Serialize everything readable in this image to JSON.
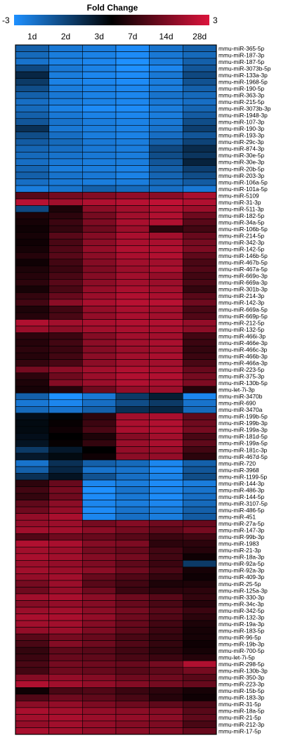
{
  "chart_data": {
    "type": "heatmap",
    "title": "Fold Change",
    "legend": {
      "min_label": "-3",
      "max_label": "3",
      "min": -3,
      "max": 3,
      "low_color": "#1e90ff",
      "mid_color": "#000000",
      "high_color": "#dc143c",
      "placement": "top"
    },
    "columns": [
      "1d",
      "2d",
      "3d",
      "7d",
      "14d",
      "28d"
    ],
    "rows": [
      "mmu-miR-365-5p",
      "mmu-miR-187-3p",
      "mmu-miR-187-5p",
      "mmu-miR-3073b-5p",
      "mmu-miR-133a-3p",
      "mmu-miR-1968-5p",
      "mmu-miR-190-5p",
      "mmu-miR-363-3p",
      "mmu-miR-215-5p",
      "mmu-miR-3073b-3p",
      "mmu-miR-1948-3p",
      "mmu-miR-107-3p",
      "mmu-miR-190-3p",
      "mmu-miR-193-3p",
      "mmu-miR-29c-3p",
      "mmu-miR-874-3p",
      "mmu-miR-30e-5p",
      "mmu-miR-30e-3p",
      "mmu-miR-20b-5p",
      "mmu-miR-203-3p",
      "mmu-miR-106a-5p",
      "mmu-miR-101a-5p",
      "mmu-miR-5109",
      "mmu-miR-31-3p",
      "mmu-miR-511-3p",
      "mmu-miR-182-5p",
      "mmu-miR-34a-5p",
      "mmu-miR-106b-5p",
      "mmu-miR-214-5p",
      "mmu-miR-342-3p",
      "mmu-miR-142-5p",
      "mmu-miR-146b-5p",
      "mmu-miR-467b-5p",
      "mmu-miR-467a-5p",
      "mmu-miR-669o-3p",
      "mmu-miR-669a-3p",
      "mmu-miR-301b-3p",
      "mmu-miR-214-3p",
      "mmu-miR-142-3p",
      "mmu-miR-669a-5p",
      "mmu-miR-669p-5p",
      "mmu-miR-212-5p",
      "mmu-miR-132-5p",
      "mmu-miR-466i-3p",
      "mmu-miR-466e-3p",
      "mmu-miR-466c-3p",
      "mmu-miR-466b-3p",
      "mmu-miR-466a-3p",
      "mmu-miR-223-5p",
      "mmu-miR-375-3p",
      "mmu-miR-130b-5p",
      "mmu-let-7i-3p",
      "mmu-miR-3470b",
      "mmu-miR-690",
      "mmu-miR-3470a",
      "mmu-miR-199b-5p",
      "mmu-miR-199b-3p",
      "mmu-miR-199a-3p",
      "mmu-miR-181d-5p",
      "mmu-miR-199a-5p",
      "mmu-miR-181c-3p",
      "mmu-miR-467d-5p",
      "mmu-miR-720",
      "mmu-miR-3968",
      "mmu-miR-1199-5p",
      "mmu-miR-144-3p",
      "mmu-miR-486-3p",
      "mmu-miR-144-5p",
      "mmu-miR-3107-5p",
      "mmu-miR-486-5p",
      "mmu-miR-451",
      "mmu-miR-27a-5p",
      "mmu-miR-147-3p",
      "mmu-miR-99b-3p",
      "mmu-miR-1983",
      "mmu-miR-21-3p",
      "mmu-miR-18a-3p",
      "mmu-miR-92a-5p",
      "mmu-miR-92a-3p",
      "mmu-miR-409-3p",
      "mmu-miR-25-5p",
      "mmu-miR-125a-3p",
      "mmu-miR-330-3p",
      "mmu-miR-34c-3p",
      "mmu-miR-342-5p",
      "mmu-miR-132-3p",
      "mmu-miR-19a-3p",
      "mmu-miR-183-5p",
      "mmu-miR-96-5p",
      "mmu-miR-19b-3p",
      "mmu-miR-700-5p",
      "mmu-let-7i-5p",
      "mmu-miR-298-5p",
      "mmu-miR-130b-3p",
      "mmu-miR-350-3p",
      "mmu-miR-223-3p",
      "mmu-miR-15b-5p",
      "mmu-miR-183-3p",
      "mmu-miR-31-5p",
      "mmu-miR-18a-5p",
      "mmu-miR-21-5p",
      "mmu-miR-212-3p",
      "mmu-miR-17-5p"
    ],
    "values": [
      [
        -2.0,
        -2.5,
        -2.6,
        -2.9,
        -2.4,
        -2.0
      ],
      [
        -2.2,
        -2.6,
        -2.7,
        -2.9,
        -2.5,
        -2.2
      ],
      [
        -2.4,
        -2.7,
        -2.8,
        -3.0,
        -2.6,
        -2.0
      ],
      [
        -1.5,
        -2.5,
        -2.7,
        -3.0,
        -2.8,
        -1.8
      ],
      [
        -0.8,
        -2.6,
        -2.8,
        -2.9,
        -2.5,
        -1.5
      ],
      [
        -1.2,
        -2.7,
        -2.8,
        -2.9,
        -2.6,
        -1.7
      ],
      [
        -1.6,
        -2.6,
        -2.7,
        -2.8,
        -2.6,
        -2.0
      ],
      [
        -2.0,
        -2.5,
        -2.7,
        -2.8,
        -2.4,
        -2.2
      ],
      [
        -2.3,
        -2.6,
        -2.7,
        -2.8,
        -2.5,
        -2.3
      ],
      [
        -2.2,
        -2.7,
        -2.9,
        -2.9,
        -2.6,
        -2.1
      ],
      [
        -2.0,
        -2.5,
        -2.7,
        -2.8,
        -2.6,
        -1.9
      ],
      [
        -1.8,
        -2.4,
        -2.6,
        -2.7,
        -2.5,
        -1.6
      ],
      [
        -1.0,
        -2.5,
        -2.6,
        -2.7,
        -2.4,
        -1.3
      ],
      [
        -1.6,
        -2.3,
        -2.6,
        -2.7,
        -2.3,
        -1.8
      ],
      [
        -1.9,
        -2.2,
        -2.5,
        -2.6,
        -2.0,
        -1.4
      ],
      [
        -2.1,
        -2.3,
        -2.5,
        -2.6,
        -1.5,
        -0.9
      ],
      [
        -2.2,
        -2.4,
        -2.5,
        -2.6,
        -1.6,
        -1.1
      ],
      [
        -2.3,
        -2.5,
        -2.6,
        -2.6,
        -1.8,
        -0.7
      ],
      [
        -2.1,
        -2.6,
        -2.6,
        -2.7,
        -2.0,
        -1.3
      ],
      [
        -2.0,
        -2.4,
        -2.5,
        -2.7,
        -2.1,
        -1.6
      ],
      [
        -2.3,
        -2.5,
        -2.6,
        -2.6,
        -2.2,
        -1.9
      ],
      [
        -2.6,
        -2.4,
        -2.0,
        -2.2,
        -2.3,
        -2.5
      ],
      [
        1.2,
        1.6,
        1.8,
        2.0,
        1.9,
        2.3
      ],
      [
        2.5,
        2.2,
        2.4,
        2.5,
        2.6,
        2.4
      ],
      [
        -1.5,
        0.4,
        1.9,
        2.2,
        2.4,
        2.1
      ],
      [
        0.4,
        0.6,
        1.6,
        2.2,
        2.4,
        1.5
      ],
      [
        0.3,
        0.8,
        1.7,
        2.3,
        2.4,
        1.2
      ],
      [
        0.2,
        0.7,
        1.5,
        2.1,
        0.6,
        0.9
      ],
      [
        0.3,
        1.2,
        1.8,
        2.3,
        2.2,
        1.4
      ],
      [
        0.2,
        1.0,
        1.9,
        2.3,
        2.3,
        1.6
      ],
      [
        0.3,
        1.1,
        2.0,
        2.4,
        2.4,
        1.7
      ],
      [
        0.5,
        1.2,
        1.9,
        2.3,
        2.4,
        1.3
      ],
      [
        0.2,
        0.9,
        1.8,
        2.2,
        2.2,
        1.0
      ],
      [
        0.4,
        0.8,
        1.7,
        2.1,
        2.3,
        1.1
      ],
      [
        0.5,
        1.0,
        1.8,
        2.2,
        2.0,
        0.9
      ],
      [
        0.6,
        1.2,
        1.9,
        2.2,
        2.1,
        1.0
      ],
      [
        0.3,
        1.0,
        2.0,
        2.3,
        2.2,
        0.7
      ],
      [
        0.7,
        1.4,
        2.1,
        2.4,
        2.3,
        1.2
      ],
      [
        0.9,
        1.9,
        2.3,
        2.5,
        2.5,
        1.5
      ],
      [
        0.4,
        0.9,
        2.0,
        2.3,
        2.2,
        1.0
      ],
      [
        0.5,
        1.0,
        2.0,
        2.3,
        2.2,
        1.1
      ],
      [
        2.4,
        2.2,
        2.3,
        2.4,
        2.4,
        2.0
      ],
      [
        2.1,
        1.9,
        2.2,
        2.3,
        2.3,
        1.9
      ],
      [
        0.6,
        0.8,
        1.8,
        2.2,
        2.2,
        0.9
      ],
      [
        0.5,
        0.9,
        1.9,
        2.2,
        2.3,
        0.8
      ],
      [
        0.6,
        0.8,
        1.8,
        2.1,
        2.2,
        0.7
      ],
      [
        0.5,
        0.9,
        1.9,
        2.2,
        2.3,
        0.8
      ],
      [
        0.7,
        1.0,
        1.9,
        2.2,
        2.2,
        1.0
      ],
      [
        1.6,
        1.9,
        2.2,
        2.4,
        2.3,
        1.4
      ],
      [
        0.6,
        1.5,
        2.1,
        2.4,
        2.4,
        1.6
      ],
      [
        0.4,
        1.8,
        2.1,
        2.4,
        2.3,
        1.7
      ],
      [
        0.3,
        0.5,
        1.5,
        2.0,
        2.1,
        0.5
      ],
      [
        -2.0,
        -3.0,
        -2.5,
        -1.2,
        -0.6,
        -2.8
      ],
      [
        -2.5,
        -2.8,
        -2.3,
        -1.6,
        -1.2,
        -2.4
      ],
      [
        -2.2,
        -2.4,
        -2.0,
        -1.0,
        -0.8,
        -2.2
      ],
      [
        -0.3,
        -0.1,
        0.6,
        2.2,
        2.3,
        1.3
      ],
      [
        -0.2,
        0.1,
        0.8,
        2.3,
        2.4,
        1.5
      ],
      [
        -0.2,
        0.2,
        1.0,
        2.3,
        2.4,
        1.6
      ],
      [
        -0.3,
        0.0,
        0.4,
        1.8,
        2.2,
        1.0
      ],
      [
        -0.4,
        0.1,
        0.7,
        2.1,
        2.3,
        1.3
      ],
      [
        -1.2,
        -0.5,
        0.0,
        2.0,
        2.1,
        0.9
      ],
      [
        -0.5,
        -0.2,
        0.2,
        1.9,
        2.0,
        0.6
      ],
      [
        -2.4,
        -1.0,
        -2.0,
        -2.2,
        -2.8,
        -2.0
      ],
      [
        -2.0,
        -0.8,
        -2.4,
        -2.4,
        -2.9,
        -1.8
      ],
      [
        -1.0,
        -0.4,
        -1.7,
        -2.3,
        -2.7,
        -1.6
      ],
      [
        0.6,
        1.4,
        -2.8,
        -2.6,
        -2.9,
        -2.6
      ],
      [
        0.9,
        1.6,
        -3.0,
        -2.4,
        -2.8,
        -2.4
      ],
      [
        0.7,
        1.5,
        -2.9,
        -2.5,
        -2.9,
        -2.3
      ],
      [
        1.3,
        1.9,
        -2.8,
        -2.6,
        -2.8,
        -2.2
      ],
      [
        1.5,
        2.0,
        -2.9,
        -2.4,
        -2.6,
        -2.0
      ],
      [
        2.0,
        2.3,
        -2.8,
        -2.3,
        -2.6,
        -1.9
      ],
      [
        2.0,
        2.1,
        1.6,
        1.8,
        1.5,
        1.4
      ],
      [
        2.2,
        2.2,
        1.9,
        1.6,
        1.3,
        1.6
      ],
      [
        1.1,
        1.5,
        1.4,
        1.2,
        0.8,
        0.9
      ],
      [
        2.4,
        2.3,
        1.8,
        1.7,
        0.6,
        0.6
      ],
      [
        2.2,
        2.1,
        1.6,
        1.4,
        0.9,
        0.5
      ],
      [
        2.3,
        2.2,
        1.8,
        1.6,
        0.9,
        0.2
      ],
      [
        2.1,
        2.0,
        1.7,
        1.3,
        0.8,
        -1.2
      ],
      [
        2.2,
        2.1,
        1.9,
        1.5,
        1.0,
        0.3
      ],
      [
        2.0,
        2.2,
        1.4,
        1.1,
        0.7,
        0.2
      ],
      [
        1.6,
        2.1,
        1.2,
        0.9,
        0.4,
        0.4
      ],
      [
        1.5,
        2.0,
        1.5,
        0.8,
        0.6,
        0.6
      ],
      [
        2.2,
        2.3,
        1.9,
        1.5,
        1.2,
        0.7
      ],
      [
        1.8,
        2.0,
        1.8,
        1.4,
        1.0,
        0.5
      ],
      [
        2.1,
        2.2,
        1.9,
        1.6,
        1.2,
        0.8
      ],
      [
        2.3,
        2.3,
        2.0,
        1.5,
        1.1,
        0.6
      ],
      [
        2.2,
        2.2,
        1.8,
        1.4,
        0.9,
        0.4
      ],
      [
        2.0,
        2.1,
        1.7,
        1.3,
        0.8,
        0.3
      ],
      [
        1.2,
        1.6,
        1.4,
        1.0,
        0.7,
        0.3
      ],
      [
        1.0,
        1.8,
        1.5,
        1.1,
        0.7,
        0.2
      ],
      [
        0.7,
        1.3,
        1.2,
        0.9,
        0.6,
        0.3
      ],
      [
        0.8,
        1.4,
        1.3,
        1.0,
        0.8,
        0.5
      ],
      [
        1.0,
        1.6,
        1.5,
        1.4,
        1.6,
        2.4
      ],
      [
        0.9,
        1.5,
        1.4,
        1.2,
        1.3,
        1.6
      ],
      [
        1.8,
        2.0,
        1.8,
        1.5,
        1.5,
        1.2
      ],
      [
        2.4,
        2.2,
        2.0,
        1.8,
        1.6,
        1.4
      ],
      [
        0.2,
        1.0,
        1.1,
        0.8,
        0.6,
        0.3
      ],
      [
        1.1,
        1.5,
        1.3,
        1.0,
        0.5,
        0.2
      ],
      [
        1.9,
        2.0,
        1.7,
        1.5,
        1.3,
        1.0
      ],
      [
        2.3,
        2.2,
        2.0,
        1.9,
        1.8,
        1.2
      ],
      [
        2.2,
        2.3,
        2.1,
        2.0,
        1.9,
        1.3
      ],
      [
        2.0,
        2.2,
        2.0,
        1.8,
        1.7,
        1.0
      ],
      [
        2.3,
        2.2,
        2.0,
        1.9,
        1.8,
        1.4
      ]
    ]
  }
}
